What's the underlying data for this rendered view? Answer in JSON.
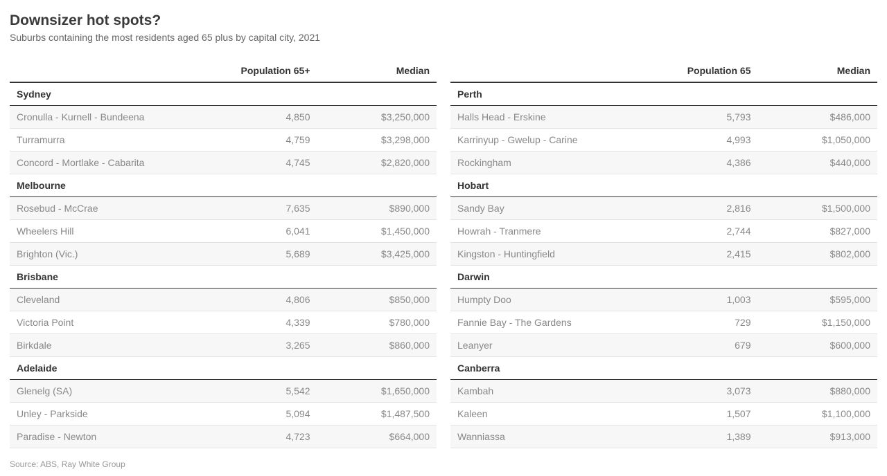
{
  "title": "Downsizer hot spots?",
  "subtitle": "Suburbs containing the most residents aged 65 plus by capital city, 2021",
  "source": "Source: ABS, Ray White Group",
  "leftHeaders": {
    "c1": "",
    "c2": "Population 65+",
    "c3": "Median"
  },
  "rightHeaders": {
    "c1": "",
    "c2": "Population 65",
    "c3": "Median"
  },
  "left": [
    {
      "city": "Sydney",
      "rows": [
        {
          "name": "Cronulla - Kurnell - Bundeena",
          "pop": "4,850",
          "median": "$3,250,000"
        },
        {
          "name": "Turramurra",
          "pop": "4,759",
          "median": "$3,298,000"
        },
        {
          "name": "Concord - Mortlake - Cabarita",
          "pop": "4,745",
          "median": "$2,820,000"
        }
      ]
    },
    {
      "city": "Melbourne",
      "rows": [
        {
          "name": "Rosebud - McCrae",
          "pop": "7,635",
          "median": "$890,000"
        },
        {
          "name": "Wheelers Hill",
          "pop": "6,041",
          "median": "$1,450,000"
        },
        {
          "name": "Brighton (Vic.)",
          "pop": "5,689",
          "median": "$3,425,000"
        }
      ]
    },
    {
      "city": "Brisbane",
      "rows": [
        {
          "name": "Cleveland",
          "pop": "4,806",
          "median": "$850,000"
        },
        {
          "name": "Victoria Point",
          "pop": "4,339",
          "median": "$780,000"
        },
        {
          "name": "Birkdale",
          "pop": "3,265",
          "median": "$860,000"
        }
      ]
    },
    {
      "city": "Adelaide",
      "rows": [
        {
          "name": "Glenelg (SA)",
          "pop": "5,542",
          "median": "$1,650,000"
        },
        {
          "name": "Unley - Parkside",
          "pop": "5,094",
          "median": "$1,487,500"
        },
        {
          "name": "Paradise - Newton",
          "pop": "4,723",
          "median": "$664,000"
        }
      ]
    }
  ],
  "right": [
    {
      "city": "Perth",
      "rows": [
        {
          "name": "Halls Head - Erskine",
          "pop": "5,793",
          "median": "$486,000"
        },
        {
          "name": "Karrinyup - Gwelup - Carine",
          "pop": "4,993",
          "median": "$1,050,000"
        },
        {
          "name": "Rockingham",
          "pop": "4,386",
          "median": "$440,000"
        }
      ]
    },
    {
      "city": "Hobart",
      "rows": [
        {
          "name": "Sandy Bay",
          "pop": "2,816",
          "median": "$1,500,000"
        },
        {
          "name": "Howrah - Tranmere",
          "pop": "2,744",
          "median": "$827,000"
        },
        {
          "name": "Kingston - Huntingfield",
          "pop": "2,415",
          "median": "$802,000"
        }
      ]
    },
    {
      "city": "Darwin",
      "rows": [
        {
          "name": "Humpty Doo",
          "pop": "1,003",
          "median": "$595,000"
        },
        {
          "name": "Fannie Bay - The Gardens",
          "pop": "729",
          "median": "$1,150,000"
        },
        {
          "name": "Leanyer",
          "pop": "679",
          "median": "$600,000"
        }
      ]
    },
    {
      "city": "Canberra",
      "rows": [
        {
          "name": "Kambah",
          "pop": "3,073",
          "median": "$880,000"
        },
        {
          "name": "Kaleen",
          "pop": "1,507",
          "median": "$1,100,000"
        },
        {
          "name": "Wanniassa",
          "pop": "1,389",
          "median": "$913,000"
        }
      ]
    }
  ]
}
